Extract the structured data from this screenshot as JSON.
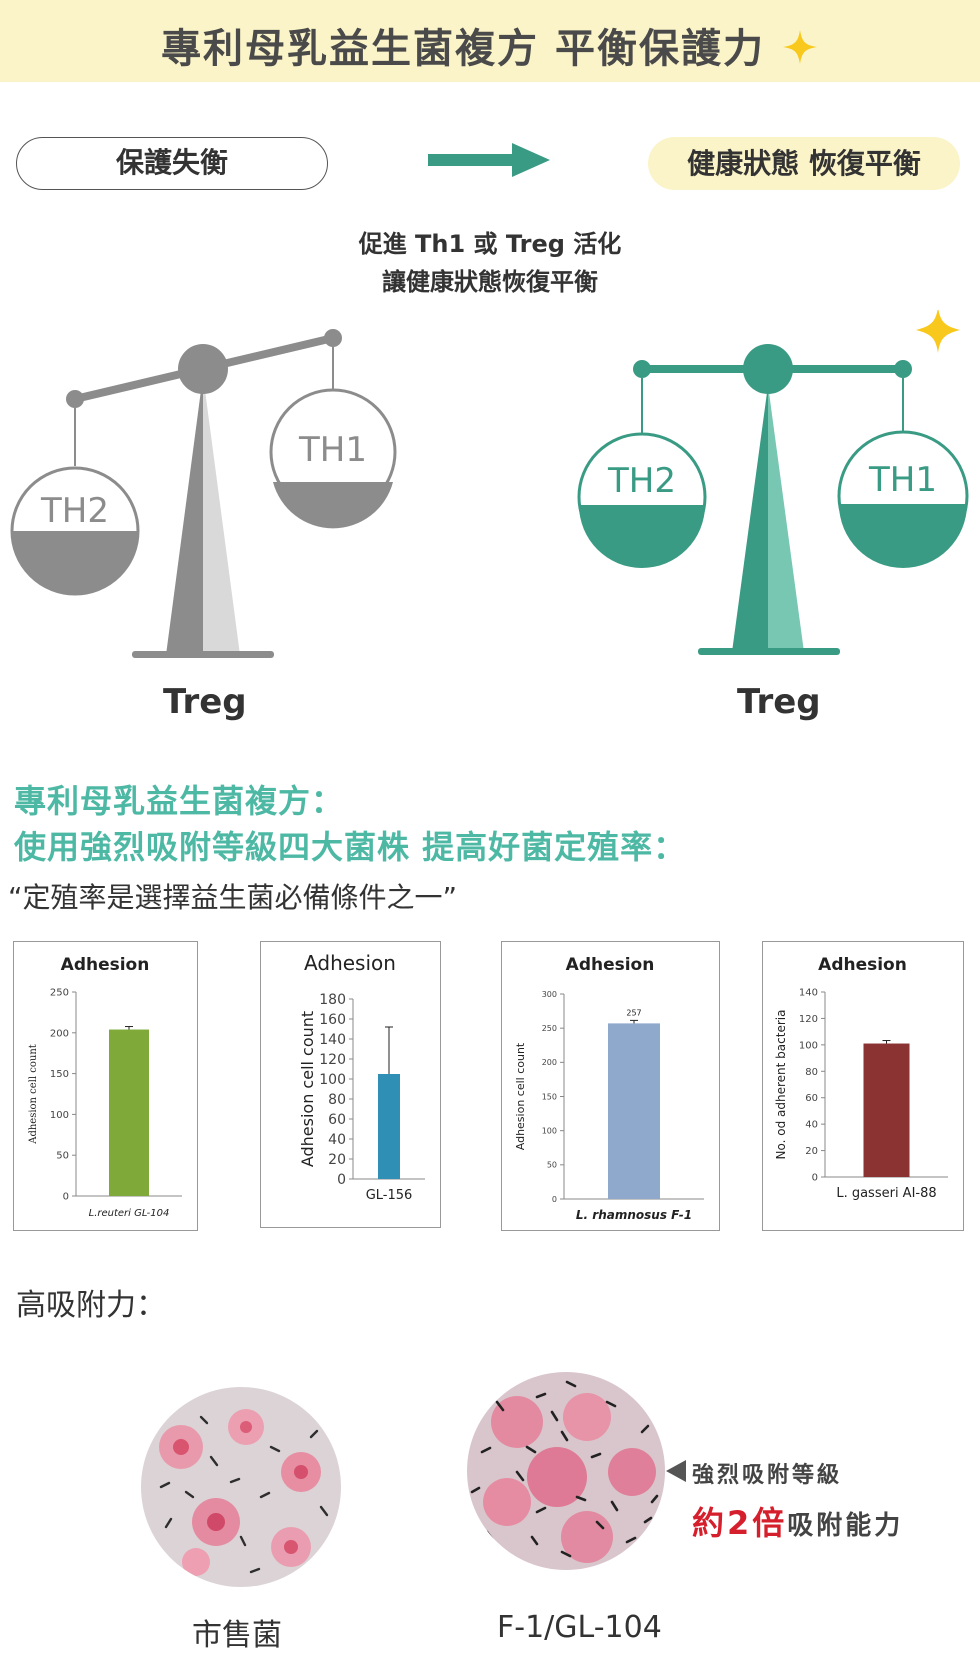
{
  "banner": {
    "title": "專利母乳益生菌複方 平衡保護力"
  },
  "balance": {
    "left_label": "保護失衡",
    "right_label": "健康狀態 恢復平衡",
    "mid_line1": "促進 Th1 或 Treg 活化",
    "mid_line2": "讓健康狀態恢復平衡",
    "th2": "TH2",
    "th1": "TH1",
    "treg": "Treg",
    "colors": {
      "gray": "#8c8c8c",
      "light_gray": "#d9d9d9",
      "teal": "#3a9b84",
      "light_teal": "#77c7b3",
      "star": "#f8c81c"
    }
  },
  "section": {
    "heading1": "專利母乳益生菌複方：",
    "heading2": "使用強烈吸附等級四大菌株 提高好菌定殖率：",
    "quote": "“定殖率是選擇益生菌必備條件之一”"
  },
  "charts": [
    {
      "title": "Adhesion",
      "ylabel": "Adhesion cell count",
      "ticks": [
        "0",
        "50",
        "100",
        "150",
        "200",
        "250"
      ],
      "category": "L.reuteri GL-104",
      "color": "#7faa3a"
    },
    {
      "title": "Adhesion",
      "ylabel": "Adhesion cell count",
      "ticks": [
        "0",
        "20",
        "40",
        "60",
        "80",
        "100",
        "120",
        "140",
        "160",
        "180"
      ],
      "category": "GL-156",
      "color": "#2f8fb5"
    },
    {
      "title": "Adhesion",
      "ylabel": "Adhesion cell count",
      "ticks": [
        "0",
        "50",
        "100",
        "150",
        "200",
        "250",
        "300"
      ],
      "category": "L. rhamnosus F-1",
      "value_label": "257",
      "color": "#8fa9cc"
    },
    {
      "title": "Adhesion",
      "ylabel": "No. od adherent bacteria",
      "ticks": [
        "0",
        "20",
        "40",
        "60",
        "80",
        "100",
        "120",
        "140"
      ],
      "category": "L. gasseri AI-88",
      "color": "#8b3232"
    }
  ],
  "chart_data": [
    {
      "type": "bar",
      "title": "Adhesion",
      "ylabel": "Adhesion cell count",
      "categories": [
        "L.reuteri GL-104"
      ],
      "values": [
        204
      ],
      "ylim": [
        0,
        250
      ]
    },
    {
      "type": "bar",
      "title": "Adhesion",
      "ylabel": "Adhesion cell count",
      "categories": [
        "GL-156"
      ],
      "values": [
        105
      ],
      "ylim": [
        0,
        180
      ]
    },
    {
      "type": "bar",
      "title": "Adhesion",
      "ylabel": "Adhesion cell count",
      "categories": [
        "L. rhamnosus F-1"
      ],
      "values": [
        257
      ],
      "ylim": [
        0,
        300
      ]
    },
    {
      "type": "bar",
      "title": "Adhesion",
      "ylabel": "No. od adherent bacteria",
      "categories": [
        "L. gasseri AI-88"
      ],
      "values": [
        101
      ],
      "ylim": [
        0,
        140
      ]
    }
  ],
  "adhesion": {
    "label": "高吸附力：",
    "left_caption": "市售菌",
    "right_caption": "F-1/GL-104",
    "callout_line1": "強烈吸附等級",
    "callout_red": "約2倍",
    "callout_rest": "吸附能力"
  }
}
